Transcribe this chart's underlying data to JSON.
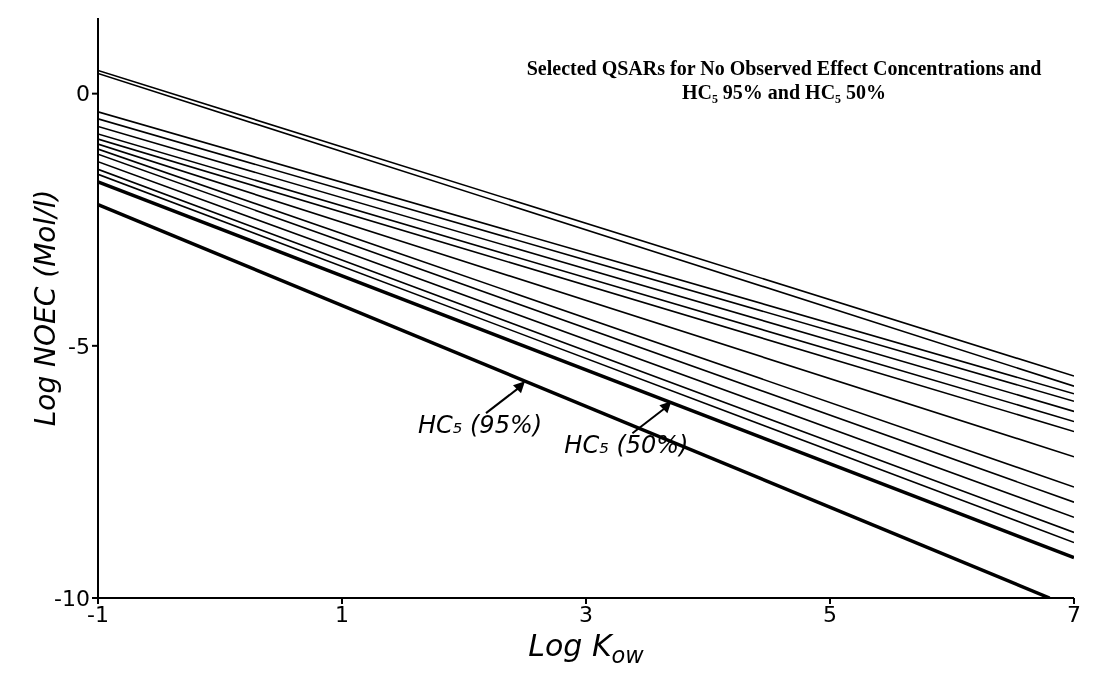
{
  "chart_data": {
    "type": "line",
    "title": "Selected QSARs for No Observed Effect Concentrations and HC₅ 95% and HC₅ 50%",
    "xlabel": "Log K$_{ow}$",
    "ylabel": "Log NOEC (Mol/l)",
    "xlim": [
      -1,
      7
    ],
    "ylim": [
      -10,
      1.5
    ],
    "xticks": [
      -1,
      1,
      3,
      5,
      7
    ],
    "yticks": [
      0,
      -5,
      -10
    ],
    "marker": "none",
    "line_style": "solid",
    "annotations": [
      {
        "text": "HC₅ (95%)",
        "x": 2.5,
        "y": -5.7
      },
      {
        "text": "HC₅ (50%)",
        "x": 3.7,
        "y": -6.1
      }
    ],
    "series": [
      {
        "color": "#000000",
        "x": [
          -1,
          7
        ],
        "values": [
          0.46,
          -5.6
        ]
      },
      {
        "color": "#000000",
        "x": [
          -1,
          7
        ],
        "values": [
          0.4,
          -5.8
        ]
      },
      {
        "color": "#000000",
        "x": [
          -1,
          7
        ],
        "values": [
          -0.36,
          -5.95
        ]
      },
      {
        "color": "#000000",
        "x": [
          -1,
          7
        ],
        "values": [
          -0.5,
          -6.1
        ]
      },
      {
        "color": "#000000",
        "x": [
          -1,
          7
        ],
        "values": [
          -0.65,
          -6.3
        ]
      },
      {
        "color": "#000000",
        "x": [
          -1,
          7
        ],
        "values": [
          -0.8,
          -6.5
        ]
      },
      {
        "color": "#000000",
        "x": [
          -1,
          7
        ],
        "values": [
          -0.9,
          -6.7
        ]
      },
      {
        "color": "#000000",
        "x": [
          -1,
          7
        ],
        "values": [
          -1.0,
          -7.2
        ]
      },
      {
        "color": "#000000",
        "x": [
          -1,
          7
        ],
        "values": [
          -1.1,
          -7.8
        ]
      },
      {
        "color": "#000000",
        "x": [
          -1,
          7
        ],
        "values": [
          -1.2,
          -8.1
        ]
      },
      {
        "color": "#000000",
        "x": [
          -1,
          7
        ],
        "values": [
          -1.35,
          -8.4
        ]
      },
      {
        "color": "#000000",
        "x": [
          -1,
          7
        ],
        "values": [
          -1.5,
          -8.7
        ]
      },
      {
        "color": "#000000",
        "x": [
          -1,
          7
        ],
        "values": [
          -1.6,
          -8.9
        ]
      },
      {
        "color": "#000000",
        "x": [
          -1,
          7
        ],
        "values": [
          -1.75,
          -9.2
        ]
      },
      {
        "color": "#000000",
        "x": [
          -1,
          6.8
        ],
        "values": [
          -2.2,
          -10
        ]
      }
    ]
  }
}
